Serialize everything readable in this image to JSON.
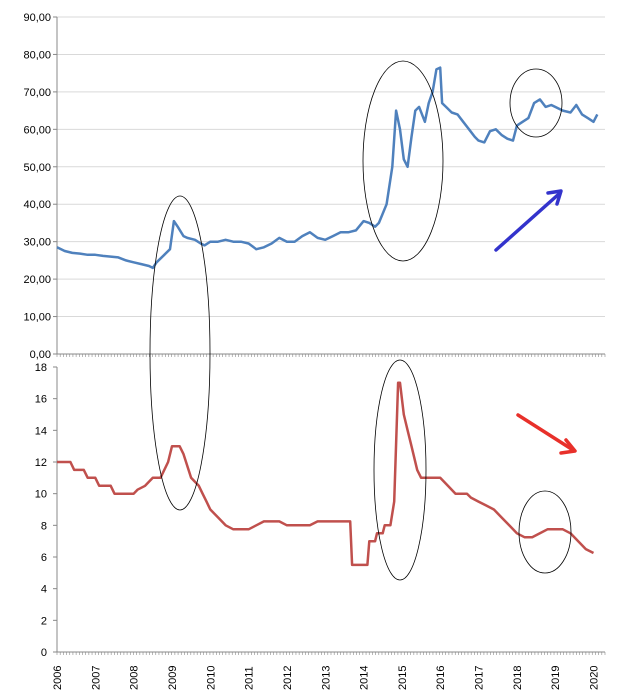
{
  "chart_data": [
    {
      "type": "line",
      "title": "",
      "xlabel": "",
      "ylabel": "",
      "ylim": [
        0,
        90
      ],
      "xlim": [
        2006.0,
        2020.3
      ],
      "yticks": [
        "0,00",
        "10,00",
        "20,00",
        "30,00",
        "40,00",
        "50,00",
        "60,00",
        "70,00",
        "80,00",
        "90,00"
      ],
      "grid": true,
      "color": "#4f81bd",
      "series": [
        {
          "x": [
            2006.0,
            2006.2,
            2006.4,
            2006.6,
            2006.8,
            2007.0,
            2007.2,
            2007.4,
            2007.6,
            2007.8,
            2008.0,
            2008.2,
            2008.4,
            2008.5,
            2008.6,
            2008.8,
            2008.95,
            2009.05,
            2009.15,
            2009.3,
            2009.4,
            2009.6,
            2009.75,
            2009.85,
            2010.0,
            2010.2,
            2010.4,
            2010.6,
            2010.8,
            2011.0,
            2011.2,
            2011.4,
            2011.6,
            2011.8,
            2012.0,
            2012.2,
            2012.4,
            2012.6,
            2012.8,
            2013.0,
            2013.2,
            2013.4,
            2013.6,
            2013.8,
            2014.0,
            2014.15,
            2014.3,
            2014.4,
            2014.6,
            2014.75,
            2014.85,
            2014.95,
            2015.05,
            2015.15,
            2015.25,
            2015.35,
            2015.45,
            2015.6,
            2015.7,
            2015.8,
            2015.9,
            2016.0,
            2016.05,
            2016.15,
            2016.3,
            2016.45,
            2016.6,
            2016.75,
            2016.9,
            2017.0,
            2017.15,
            2017.3,
            2017.45,
            2017.6,
            2017.75,
            2017.9,
            2018.0,
            2018.15,
            2018.3,
            2018.45,
            2018.6,
            2018.75,
            2018.9,
            2019.0,
            2019.2,
            2019.4,
            2019.55,
            2019.7,
            2019.85,
            2020.0,
            2020.1
          ],
          "y": [
            28.5,
            27.5,
            27.0,
            26.8,
            26.5,
            26.5,
            26.2,
            26.0,
            25.8,
            25.0,
            24.5,
            24.0,
            23.5,
            23.0,
            24.5,
            26.5,
            28.0,
            35.5,
            34.0,
            31.5,
            31.0,
            30.5,
            29.5,
            29.0,
            30.0,
            30.0,
            30.5,
            30.0,
            30.0,
            29.5,
            28.0,
            28.5,
            29.5,
            31.0,
            30.0,
            30.0,
            31.5,
            32.5,
            31.0,
            30.5,
            31.5,
            32.5,
            32.5,
            33.0,
            35.5,
            35.0,
            34.0,
            35.0,
            40.0,
            50.0,
            65.0,
            60.0,
            52.0,
            50.0,
            58.0,
            65.0,
            66.0,
            62.0,
            67.0,
            70.0,
            76.0,
            76.5,
            67.0,
            66.0,
            64.5,
            64.0,
            62.0,
            60.0,
            58.0,
            57.0,
            56.5,
            59.5,
            60.0,
            58.5,
            57.5,
            57.0,
            61.0,
            62.0,
            63.0,
            67.0,
            68.0,
            66.0,
            66.5,
            66.0,
            65.0,
            64.5,
            66.5,
            64.0,
            63.0,
            62.0,
            64.0
          ]
        }
      ]
    },
    {
      "type": "line",
      "title": "",
      "xlabel": "",
      "ylabel": "",
      "ylim": [
        0,
        18
      ],
      "xlim": [
        2006.0,
        2020.3
      ],
      "yticks": [
        "0",
        "2",
        "4",
        "6",
        "8",
        "10",
        "12",
        "14",
        "16",
        "18"
      ],
      "xticks": [
        "2006",
        "2007",
        "2008",
        "2009",
        "2010",
        "2011",
        "2012",
        "2013",
        "2014",
        "2015",
        "2016",
        "2017",
        "2018",
        "2019",
        "2020"
      ],
      "grid": false,
      "color": "#c0504d",
      "series": [
        {
          "x": [
            2006.0,
            2006.35,
            2006.45,
            2006.7,
            2006.8,
            2007.0,
            2007.1,
            2007.4,
            2007.5,
            2008.0,
            2008.1,
            2008.3,
            2008.5,
            2008.7,
            2008.9,
            2009.0,
            2009.2,
            2009.3,
            2009.5,
            2009.7,
            2009.8,
            2009.9,
            2010.0,
            2010.2,
            2010.4,
            2010.6,
            2010.8,
            2011.0,
            2011.2,
            2011.4,
            2011.6,
            2011.8,
            2012.0,
            2012.2,
            2012.4,
            2012.6,
            2012.8,
            2013.0,
            2013.2,
            2013.4,
            2013.65,
            2013.7,
            2013.8,
            2014.1,
            2014.15,
            2014.3,
            2014.35,
            2014.5,
            2014.55,
            2014.7,
            2014.8,
            2014.9,
            2014.95,
            2015.05,
            2015.15,
            2015.25,
            2015.4,
            2015.5,
            2015.6,
            2015.8,
            2016.0,
            2016.2,
            2016.4,
            2016.6,
            2016.7,
            2016.8,
            2017.0,
            2017.2,
            2017.4,
            2017.6,
            2017.7,
            2017.8,
            2018.0,
            2018.2,
            2018.4,
            2018.6,
            2018.8,
            2019.0,
            2019.2,
            2019.4,
            2019.6,
            2019.8,
            2020.0
          ],
          "y": [
            12.0,
            12.0,
            11.5,
            11.5,
            11.0,
            11.0,
            10.5,
            10.5,
            10.0,
            10.0,
            10.25,
            10.5,
            11.0,
            11.0,
            12.0,
            13.0,
            13.0,
            12.5,
            11.0,
            10.5,
            10.0,
            9.5,
            9.0,
            8.5,
            8.0,
            7.75,
            7.75,
            7.75,
            8.0,
            8.25,
            8.25,
            8.25,
            8.0,
            8.0,
            8.0,
            8.0,
            8.25,
            8.25,
            8.25,
            8.25,
            8.25,
            5.5,
            5.5,
            5.5,
            7.0,
            7.0,
            7.5,
            7.5,
            8.0,
            8.0,
            9.5,
            17.0,
            17.0,
            15.0,
            14.0,
            13.0,
            11.5,
            11.0,
            11.0,
            11.0,
            11.0,
            10.5,
            10.0,
            10.0,
            10.0,
            9.75,
            9.5,
            9.25,
            9.0,
            8.5,
            8.25,
            8.0,
            7.5,
            7.25,
            7.25,
            7.5,
            7.75,
            7.75,
            7.75,
            7.5,
            7.0,
            6.5,
            6.25
          ]
        }
      ]
    }
  ],
  "annotations": {
    "ellipse_color": "#000000",
    "blue_arrow_color": "#3333cc",
    "red_arrow_color": "#e8302a"
  }
}
